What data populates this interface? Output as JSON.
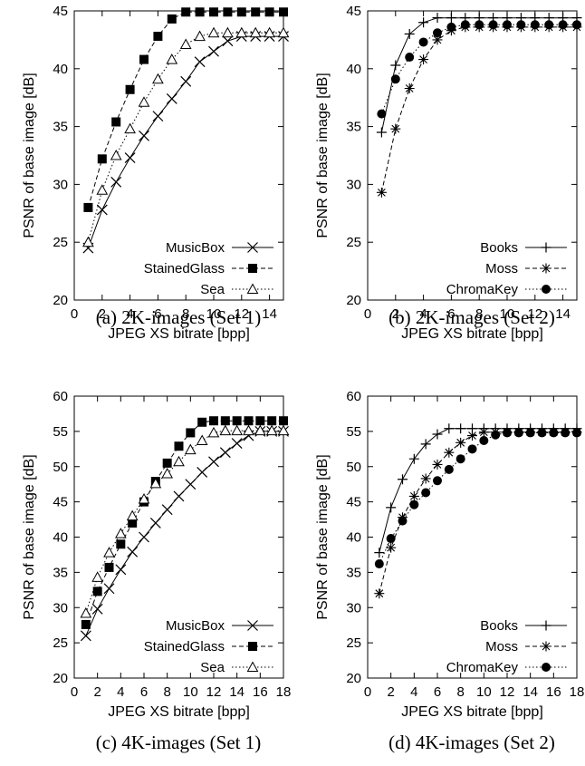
{
  "chart_data": [
    {
      "type": "line",
      "caption": "(a) 2K-images (Set 1)",
      "xlabel": "JPEG XS bitrate [bpp]",
      "ylabel": "PSNR of base image [dB]",
      "xlim": [
        0,
        15
      ],
      "ylim": [
        20,
        45
      ],
      "xticks": [
        0,
        2,
        4,
        6,
        8,
        10,
        12,
        14
      ],
      "yticks": [
        20,
        25,
        30,
        35,
        40,
        45
      ],
      "legend_position": "bottom-right",
      "series": [
        {
          "name": "MusicBox",
          "marker": "x",
          "dash": "solid",
          "x": [
            1,
            2,
            3,
            4,
            5,
            6,
            7,
            8,
            9,
            10,
            11,
            12,
            13,
            14,
            15
          ],
          "y": [
            24.5,
            27.8,
            30.2,
            32.3,
            34.2,
            35.9,
            37.4,
            38.9,
            40.6,
            41.5,
            42.4,
            42.8,
            42.8,
            42.8,
            42.8
          ]
        },
        {
          "name": "StainedGlass",
          "marker": "square",
          "dash": "dashed",
          "x": [
            1,
            2,
            3,
            4,
            5,
            6,
            7,
            8,
            9,
            10,
            11,
            12,
            13,
            14,
            15
          ],
          "y": [
            28.0,
            32.2,
            35.4,
            38.2,
            40.8,
            42.8,
            44.3,
            44.9,
            44.9,
            44.9,
            44.9,
            44.9,
            44.9,
            44.9,
            44.9
          ]
        },
        {
          "name": "Sea",
          "marker": "triangle",
          "dash": "dotted",
          "x": [
            1,
            2,
            3,
            4,
            5,
            6,
            7,
            8,
            9,
            10,
            11,
            12,
            13,
            14,
            15
          ],
          "y": [
            25.0,
            29.5,
            32.5,
            34.8,
            37.1,
            39.1,
            40.8,
            42.1,
            42.8,
            43.1,
            43.1,
            43.1,
            43.1,
            43.1,
            43.1
          ]
        }
      ]
    },
    {
      "type": "line",
      "caption": "(b) 2K-images (Set 2)",
      "xlabel": "JPEG XS bitrate [bpp]",
      "ylabel": "PSNR of base image [dB]",
      "xlim": [
        0,
        15
      ],
      "ylim": [
        20,
        45
      ],
      "xticks": [
        0,
        2,
        4,
        6,
        8,
        10,
        12,
        14
      ],
      "yticks": [
        20,
        25,
        30,
        35,
        40,
        45
      ],
      "legend_position": "bottom-right",
      "series": [
        {
          "name": "Books",
          "marker": "plus",
          "dash": "solid",
          "x": [
            1,
            2,
            3,
            4,
            5,
            6,
            7,
            8,
            9,
            10,
            11,
            12,
            13,
            14,
            15
          ],
          "y": [
            34.5,
            40.3,
            43.0,
            44.0,
            44.4,
            44.4,
            44.4,
            44.4,
            44.4,
            44.4,
            44.4,
            44.4,
            44.4,
            44.4,
            44.4
          ]
        },
        {
          "name": "Moss",
          "marker": "star",
          "dash": "dashed",
          "x": [
            1,
            2,
            3,
            4,
            5,
            6,
            7,
            8,
            9,
            10,
            11,
            12,
            13,
            14,
            15
          ],
          "y": [
            29.3,
            34.8,
            38.3,
            40.8,
            42.5,
            43.3,
            43.6,
            43.6,
            43.6,
            43.6,
            43.6,
            43.6,
            43.6,
            43.6,
            43.6
          ]
        },
        {
          "name": "ChromaKey",
          "marker": "circle",
          "dash": "dotted",
          "x": [
            1,
            2,
            3,
            4,
            5,
            6,
            7,
            8,
            9,
            10,
            11,
            12,
            13,
            14,
            15
          ],
          "y": [
            36.1,
            39.1,
            41.0,
            42.3,
            43.1,
            43.6,
            43.8,
            43.8,
            43.8,
            43.8,
            43.8,
            43.8,
            43.8,
            43.8,
            43.8
          ]
        }
      ]
    },
    {
      "type": "line",
      "caption": "(c) 4K-images (Set 1)",
      "xlabel": "JPEG XS bitrate [bpp]",
      "ylabel": "PSNR of base image [dB]",
      "xlim": [
        0,
        18
      ],
      "ylim": [
        20,
        60
      ],
      "xticks": [
        0,
        2,
        4,
        6,
        8,
        10,
        12,
        14,
        16,
        18
      ],
      "yticks": [
        20,
        25,
        30,
        35,
        40,
        45,
        50,
        55,
        60
      ],
      "legend_position": "bottom-right",
      "series": [
        {
          "name": "MusicBox",
          "marker": "x",
          "dash": "solid",
          "x": [
            1,
            2,
            3,
            4,
            5,
            6,
            7,
            8,
            9,
            10,
            11,
            12,
            13,
            14,
            15,
            16,
            17,
            18
          ],
          "y": [
            26.0,
            29.8,
            32.7,
            35.4,
            37.9,
            40.0,
            42.0,
            43.9,
            45.8,
            47.5,
            49.2,
            50.7,
            52.0,
            53.3,
            54.4,
            55.0,
            55.0,
            55.0
          ]
        },
        {
          "name": "StainedGlass",
          "marker": "square",
          "dash": "dashed",
          "x": [
            1,
            2,
            3,
            4,
            5,
            6,
            7,
            8,
            9,
            10,
            11,
            12,
            13,
            14,
            15,
            16,
            17,
            18
          ],
          "y": [
            27.6,
            32.3,
            35.7,
            39.0,
            42.0,
            45.0,
            47.9,
            50.5,
            52.9,
            54.8,
            56.3,
            56.5,
            56.5,
            56.5,
            56.5,
            56.5,
            56.5,
            56.5
          ]
        },
        {
          "name": "Sea",
          "marker": "triangle",
          "dash": "dotted",
          "x": [
            1,
            2,
            3,
            4,
            5,
            6,
            7,
            8,
            9,
            10,
            11,
            12,
            13,
            14,
            15,
            16,
            17,
            18
          ],
          "y": [
            29.2,
            34.3,
            37.8,
            40.5,
            43.0,
            45.4,
            47.6,
            49.0,
            50.7,
            52.4,
            53.7,
            54.8,
            55.1,
            55.1,
            55.1,
            55.1,
            55.1,
            55.1
          ]
        }
      ]
    },
    {
      "type": "line",
      "caption": "(d) 4K-images (Set 2)",
      "xlabel": "JPEG XS bitrate [bpp]",
      "ylabel": "PSNR of base image [dB]",
      "xlim": [
        0,
        18
      ],
      "ylim": [
        20,
        60
      ],
      "xticks": [
        0,
        2,
        4,
        6,
        8,
        10,
        12,
        14,
        16,
        18
      ],
      "yticks": [
        20,
        25,
        30,
        35,
        40,
        45,
        50,
        55,
        60
      ],
      "legend_position": "bottom-right",
      "series": [
        {
          "name": "Books",
          "marker": "plus",
          "dash": "solid",
          "x": [
            1,
            2,
            3,
            4,
            5,
            6,
            7,
            8,
            9,
            10,
            11,
            12,
            13,
            14,
            15,
            16,
            17,
            18
          ],
          "y": [
            37.8,
            44.2,
            48.2,
            51.1,
            53.2,
            54.6,
            55.4,
            55.4,
            55.4,
            55.4,
            55.4,
            55.4,
            55.4,
            55.4,
            55.4,
            55.4,
            55.4,
            55.4
          ]
        },
        {
          "name": "Moss",
          "marker": "star",
          "dash": "dashed",
          "x": [
            1,
            2,
            3,
            4,
            5,
            6,
            7,
            8,
            9,
            10,
            11,
            12,
            13,
            14,
            15,
            16,
            17,
            18
          ],
          "y": [
            32.0,
            38.5,
            42.8,
            45.8,
            48.3,
            50.3,
            52.0,
            53.4,
            54.4,
            54.9,
            54.9,
            54.9,
            54.9,
            54.9,
            54.9,
            54.9,
            54.9,
            54.9
          ]
        },
        {
          "name": "ChromaKey",
          "marker": "circle",
          "dash": "dotted",
          "x": [
            1,
            2,
            3,
            4,
            5,
            6,
            7,
            8,
            9,
            10,
            11,
            12,
            13,
            14,
            15,
            16,
            17,
            18
          ],
          "y": [
            36.2,
            39.8,
            42.3,
            44.6,
            46.3,
            48.0,
            49.6,
            51.1,
            52.5,
            53.7,
            54.5,
            54.8,
            54.8,
            54.8,
            54.8,
            54.8,
            54.8,
            54.8
          ]
        }
      ]
    }
  ]
}
